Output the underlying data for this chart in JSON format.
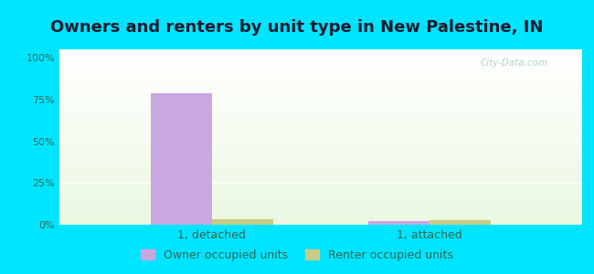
{
  "title": "Owners and renters by unit type in New Palestine, IN",
  "categories": [
    "1, detached",
    "1, attached"
  ],
  "owner_values": [
    79,
    2
  ],
  "renter_values": [
    3.5,
    2.5
  ],
  "owner_color": "#c9a8e0",
  "renter_color": "#c8cc88",
  "yticks": [
    0,
    25,
    50,
    75,
    100
  ],
  "ytick_labels": [
    "0%",
    "25%",
    "50%",
    "75%",
    "100%"
  ],
  "ylim": [
    0,
    105
  ],
  "legend_owner": "Owner occupied units",
  "legend_renter": "Renter occupied units",
  "outer_color": "#00e5ff",
  "bar_width": 0.28,
  "title_fontsize": 13,
  "label_fontsize": 9,
  "tick_fontsize": 8,
  "watermark": "City-Data.com"
}
